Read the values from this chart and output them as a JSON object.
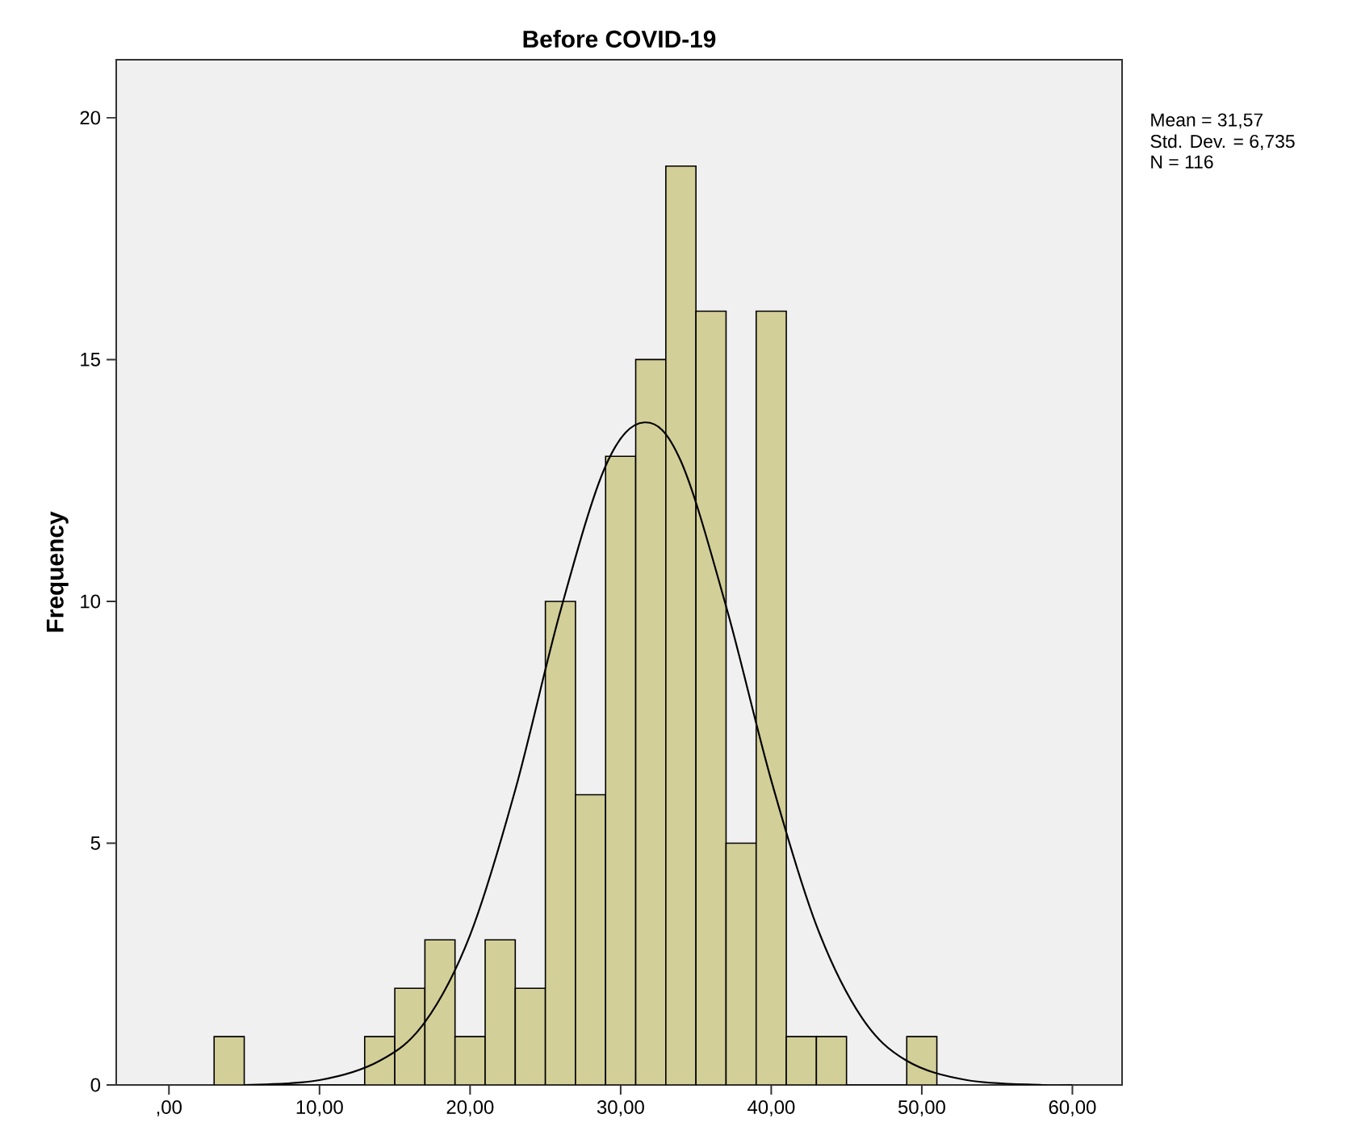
{
  "chart_data": {
    "type": "histogram",
    "title": "Before COVID-19",
    "ylabel": "Frequency",
    "bins": [
      3,
      5,
      7,
      9,
      11,
      13,
      15,
      17,
      19,
      21,
      23,
      25,
      27,
      29,
      31,
      33,
      35,
      37,
      39,
      41,
      43,
      45,
      47,
      49,
      51
    ],
    "values": [
      1,
      0,
      0,
      0,
      0,
      1,
      2,
      3,
      1,
      3,
      2,
      10,
      6,
      13,
      15,
      19,
      16,
      5,
      16,
      1,
      1,
      0,
      0,
      1
    ],
    "color": "#d3cf98",
    "series": [
      {
        "type": "line",
        "color": "#000000",
        "x": [
          5,
          10,
          14,
          17,
          20,
          23,
          26,
          29,
          31.57,
          34,
          37,
          40,
          43,
          46,
          49,
          53,
          58,
          60
        ],
        "values": [
          0.0,
          0.1,
          0.5,
          1.3,
          3.1,
          6.1,
          9.8,
          12.8,
          13.7,
          12.9,
          9.9,
          6.3,
          3.3,
          1.4,
          0.5,
          0.1,
          0.0,
          0.0
        ]
      }
    ],
    "xlim": [
      -3.5,
      63.3
    ],
    "ylim": [
      0,
      21.2
    ],
    "xticks": [
      {
        "value": 0,
        "label": ",00"
      },
      {
        "value": 10,
        "label": "10,00"
      },
      {
        "value": 20,
        "label": "20,00"
      },
      {
        "value": 30,
        "label": "30,00"
      },
      {
        "value": 40,
        "label": "40,00"
      },
      {
        "value": 50,
        "label": "50,00"
      },
      {
        "value": 60,
        "label": "60,00"
      }
    ],
    "yticks": [
      0,
      5,
      10,
      15,
      20
    ],
    "annotations": [
      "Mean = 31,57",
      "Std. Dev. = 6,735",
      "N = 116"
    ]
  }
}
